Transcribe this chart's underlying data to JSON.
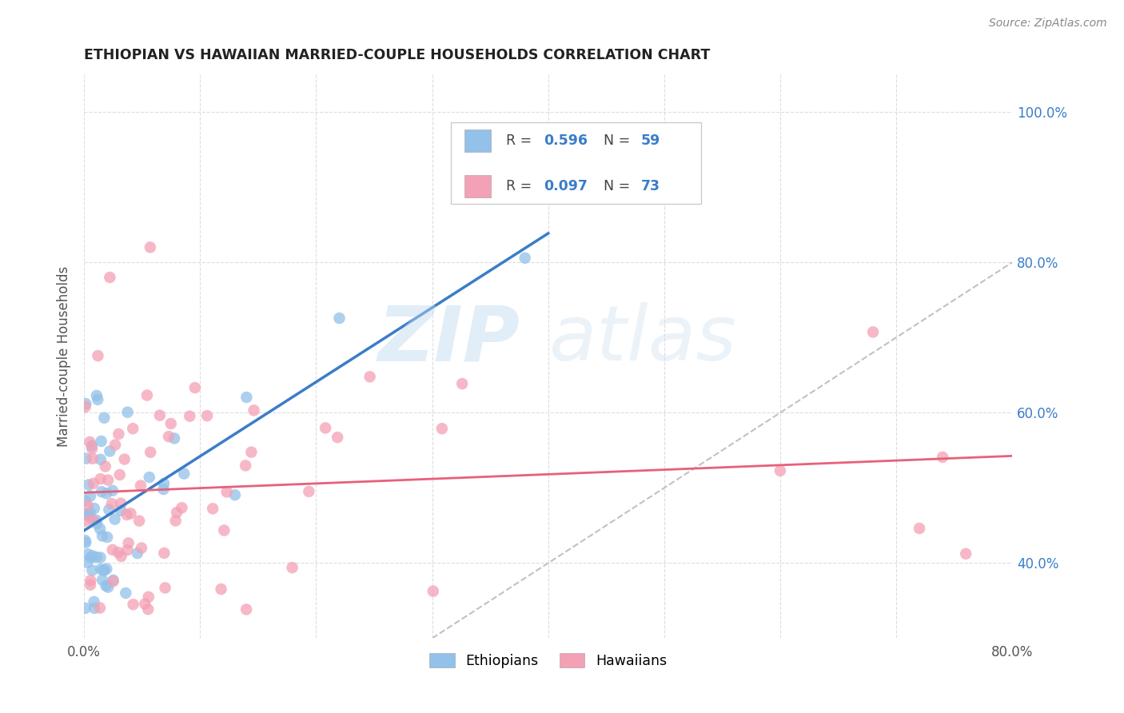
{
  "title": "ETHIOPIAN VS HAWAIIAN MARRIED-COUPLE HOUSEHOLDS CORRELATION CHART",
  "source": "Source: ZipAtlas.com",
  "ylabel": "Married-couple Households",
  "blue_color": "#92C1E9",
  "pink_color": "#F4A0B5",
  "blue_line_color": "#3A7DC9",
  "pink_line_color": "#E8607A",
  "diagonal_color": "#BBBBBB",
  "watermark_zip": "ZIP",
  "watermark_atlas": "atlas",
  "xlim": [
    0.0,
    0.8
  ],
  "ylim": [
    0.3,
    1.05
  ],
  "x_tick_positions": [
    0.0,
    0.1,
    0.2,
    0.3,
    0.4,
    0.5,
    0.6,
    0.7,
    0.8
  ],
  "x_tick_labels": [
    "0.0%",
    "",
    "",
    "",
    "",
    "",
    "",
    "",
    "80.0%"
  ],
  "y_tick_positions": [
    0.4,
    0.6,
    0.8,
    1.0
  ],
  "y_tick_labels": [
    "40.0%",
    "60.0%",
    "80.0%",
    "100.0%"
  ],
  "eth_seed": 10,
  "haw_seed": 20,
  "eth_n": 59,
  "haw_n": 73
}
